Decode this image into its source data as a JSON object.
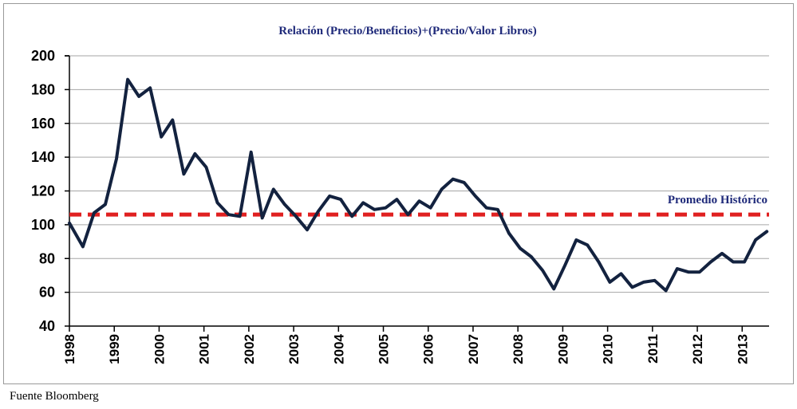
{
  "chart_data": {
    "type": "line",
    "title": "Relación (Precio/Beneficios)+(Precio/Valor Libros)",
    "xlabel": "",
    "ylabel": "",
    "ylim": [
      40,
      200
    ],
    "yticks": [
      40,
      60,
      80,
      100,
      120,
      140,
      160,
      180,
      200
    ],
    "xlim": [
      1998,
      2013.6
    ],
    "xticks": [
      "1998",
      "1999",
      "2000",
      "2001",
      "2002",
      "2003",
      "2004",
      "2005",
      "2006",
      "2007",
      "2008",
      "2009",
      "2010",
      "2011",
      "2012",
      "2013"
    ],
    "grid": true,
    "series": [
      {
        "color": "#13223f",
        "x": [
          1998.0,
          1998.3,
          1998.55,
          1998.8,
          1999.05,
          1999.3,
          1999.55,
          1999.8,
          2000.05,
          2000.3,
          2000.55,
          2000.8,
          2001.05,
          2001.3,
          2001.55,
          2001.8,
          2002.05,
          2002.3,
          2002.55,
          2002.8,
          2003.05,
          2003.3,
          2003.55,
          2003.8,
          2004.05,
          2004.3,
          2004.55,
          2004.8,
          2005.05,
          2005.3,
          2005.55,
          2005.8,
          2006.05,
          2006.3,
          2006.55,
          2006.8,
          2007.05,
          2007.3,
          2007.55,
          2007.8,
          2008.05,
          2008.3,
          2008.55,
          2008.8,
          2009.05,
          2009.3,
          2009.55,
          2009.8,
          2010.05,
          2010.3,
          2010.55,
          2010.8,
          2011.05,
          2011.3,
          2011.55,
          2011.8,
          2012.05,
          2012.3,
          2012.55,
          2012.8,
          2013.05,
          2013.3,
          2013.55
        ],
        "y": [
          101,
          87,
          107,
          112,
          139,
          186,
          176,
          181,
          152,
          162,
          130,
          142,
          134,
          113,
          106,
          105,
          143,
          104,
          121,
          112,
          105,
          97,
          108,
          117,
          115,
          105,
          113,
          109,
          110,
          115,
          106,
          114,
          110,
          121,
          127,
          125,
          117,
          110,
          109,
          95,
          86,
          81,
          73,
          62,
          76,
          91,
          88,
          78,
          66,
          71,
          63,
          66,
          67,
          61,
          74,
          72,
          72,
          78,
          83,
          78,
          78,
          91,
          96
        ]
      }
    ],
    "reference_line": {
      "label": "Promedio Histórico",
      "value": 106,
      "color": "#e02020",
      "style": "dashed"
    }
  },
  "footer": {
    "source": "Fuente Bloomberg"
  }
}
